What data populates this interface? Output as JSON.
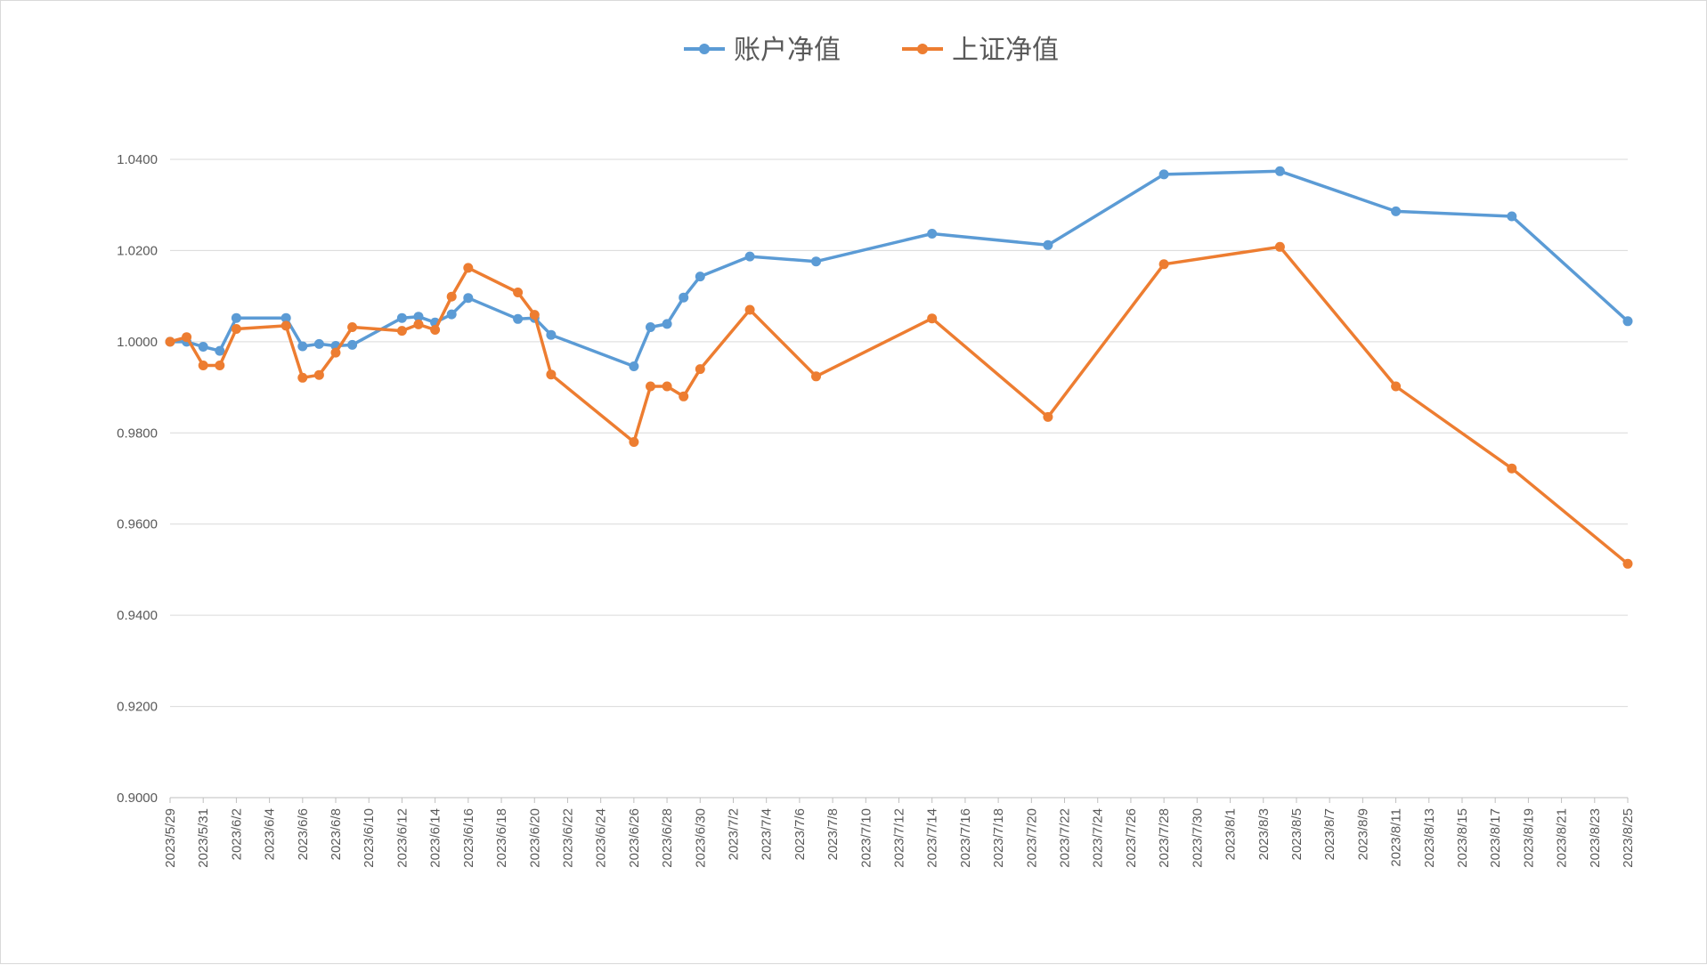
{
  "chart_data": {
    "type": "line",
    "title": "",
    "xlabel": "",
    "ylabel": "",
    "ylim": [
      0.9,
      1.04
    ],
    "y_ticks": [
      "0.9000",
      "0.9200",
      "0.9400",
      "0.9600",
      "0.9800",
      "1.0000",
      "1.0200",
      "1.0400"
    ],
    "x_range": [
      "2023-05-29",
      "2023-08-25"
    ],
    "x_tick_labels": [
      "2023/5/29",
      "2023/5/31",
      "2023/6/2",
      "2023/6/4",
      "2023/6/6",
      "2023/6/8",
      "2023/6/10",
      "2023/6/12",
      "2023/6/14",
      "2023/6/16",
      "2023/6/18",
      "2023/6/20",
      "2023/6/22",
      "2023/6/24",
      "2023/6/26",
      "2023/6/28",
      "2023/6/30",
      "2023/7/2",
      "2023/7/4",
      "2023/7/6",
      "2023/7/8",
      "2023/7/10",
      "2023/7/12",
      "2023/7/14",
      "2023/7/16",
      "2023/7/18",
      "2023/7/20",
      "2023/7/22",
      "2023/7/24",
      "2023/7/26",
      "2023/7/28",
      "2023/7/30",
      "2023/8/1",
      "2023/8/3",
      "2023/8/5",
      "2023/8/7",
      "2023/8/9",
      "2023/8/11",
      "2023/8/13",
      "2023/8/15",
      "2023/8/17",
      "2023/8/19",
      "2023/8/21",
      "2023/8/23",
      "2023/8/25"
    ],
    "grid": "horizontal",
    "legend": "top-center",
    "x": [
      "2023-05-29",
      "2023-05-30",
      "2023-05-31",
      "2023-06-01",
      "2023-06-02",
      "2023-06-05",
      "2023-06-06",
      "2023-06-07",
      "2023-06-08",
      "2023-06-09",
      "2023-06-12",
      "2023-06-13",
      "2023-06-14",
      "2023-06-15",
      "2023-06-16",
      "2023-06-19",
      "2023-06-20",
      "2023-06-21",
      "2023-06-26",
      "2023-06-27",
      "2023-06-28",
      "2023-06-29",
      "2023-06-30",
      "2023-07-03",
      "2023-07-07",
      "2023-07-14",
      "2023-07-21",
      "2023-07-28",
      "2023-08-04",
      "2023-08-11",
      "2023-08-18",
      "2023-08-25"
    ],
    "series": [
      {
        "name": "账户净值",
        "color": "#5b9bd5",
        "values": [
          1.0,
          1.0,
          0.9989,
          0.998,
          1.0052,
          1.0052,
          0.999,
          0.9995,
          0.9991,
          0.9993,
          1.0052,
          1.0055,
          1.0042,
          1.006,
          1.0096,
          1.005,
          1.0052,
          1.0015,
          0.9946,
          1.0032,
          1.0039,
          1.0097,
          1.0143,
          1.0187,
          1.0176,
          1.0237,
          1.0212,
          1.0367,
          1.0374,
          1.0286,
          1.0275,
          1.0045
        ]
      },
      {
        "name": "上证净值",
        "color": "#ed7d31",
        "values": [
          1.0,
          1.001,
          0.9948,
          0.9948,
          1.0028,
          1.0035,
          0.9921,
          0.9927,
          0.9976,
          1.0032,
          1.0024,
          1.0038,
          1.0026,
          1.0099,
          1.0162,
          1.0108,
          1.0059,
          0.9928,
          0.978,
          0.9902,
          0.9902,
          0.988,
          0.994,
          1.007,
          0.9924,
          1.0051,
          0.9835,
          1.017,
          1.0208,
          0.9902,
          0.9722,
          0.9513
        ]
      }
    ]
  }
}
